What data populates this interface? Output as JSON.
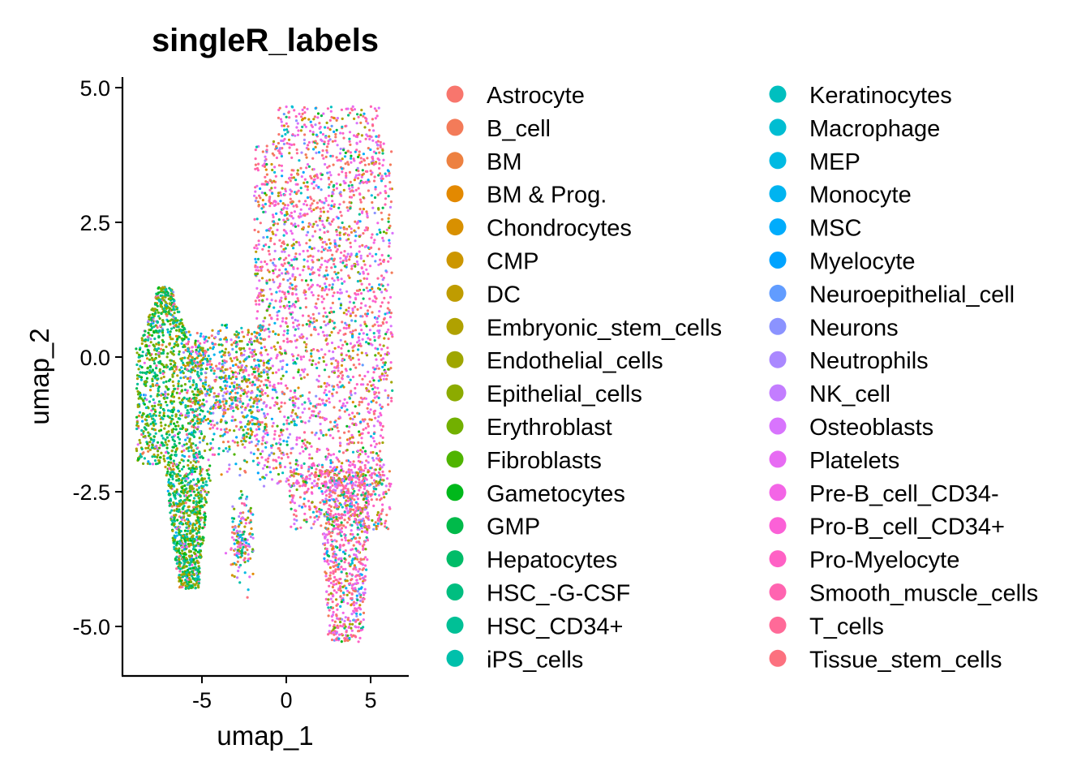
{
  "chart_data": {
    "type": "scatter",
    "title": "singleR_labels",
    "xlabel": "umap_1",
    "ylabel": "umap_2",
    "xlim": [
      -9.5,
      7.5
    ],
    "ylim": [
      -5.9,
      5.2
    ],
    "xticks": [
      -5,
      0,
      5
    ],
    "xtick_labels": [
      "-5",
      "0",
      "5"
    ],
    "yticks": [
      5.0,
      2.5,
      0.0,
      -2.5,
      -5.0
    ],
    "ytick_labels": [
      "5.0",
      "2.5",
      "0.0",
      "-2.5",
      "-5.0"
    ],
    "grid": false,
    "legend_position": "right",
    "legend_columns": 2,
    "series": [
      {
        "name": "Astrocyte",
        "color": "#F8766D"
      },
      {
        "name": "B_cell",
        "color": "#F37B59"
      },
      {
        "name": "BM",
        "color": "#ED8141"
      },
      {
        "name": "BM & Prog.",
        "color": "#E38900"
      },
      {
        "name": "Chondrocytes",
        "color": "#D89000"
      },
      {
        "name": "CMP",
        "color": "#CC9600"
      },
      {
        "name": "DC",
        "color": "#BF9C00"
      },
      {
        "name": "Embryonic_stem_cells",
        "color": "#B0A100"
      },
      {
        "name": "Endothelial_cells",
        "color": "#9FA600"
      },
      {
        "name": "Epithelial_cells",
        "color": "#8CAB00"
      },
      {
        "name": "Erythroblast",
        "color": "#72B000"
      },
      {
        "name": "Fibroblasts",
        "color": "#4FB400"
      },
      {
        "name": "Gametocytes",
        "color": "#00B81B"
      },
      {
        "name": "GMP",
        "color": "#00BA4A"
      },
      {
        "name": "Hepatocytes",
        "color": "#00BC68"
      },
      {
        "name": "HSC_-G-CSF",
        "color": "#00BE80"
      },
      {
        "name": "HSC_CD34+",
        "color": "#00C096"
      },
      {
        "name": "iPS_cells",
        "color": "#00C0AB"
      },
      {
        "name": "Keratinocytes",
        "color": "#00BFBF"
      },
      {
        "name": "Macrophage",
        "color": "#00BDD2"
      },
      {
        "name": "MEP",
        "color": "#00BAE2"
      },
      {
        "name": "Monocyte",
        "color": "#00B4F0"
      },
      {
        "name": "MSC",
        "color": "#00ACFC"
      },
      {
        "name": "Myelocyte",
        "color": "#00A3FF"
      },
      {
        "name": "Neuroepithelial_cell",
        "color": "#619CFF"
      },
      {
        "name": "Neurons",
        "color": "#8B93FF"
      },
      {
        "name": "Neutrophils",
        "color": "#AA88FF"
      },
      {
        "name": "NK_cell",
        "color": "#C37DFF"
      },
      {
        "name": "Osteoblasts",
        "color": "#D874FD"
      },
      {
        "name": "Platelets",
        "color": "#E76BF3"
      },
      {
        "name": "Pre-B_cell_CD34-",
        "color": "#F365E6"
      },
      {
        "name": "Pro-B_cell_CD34+",
        "color": "#FB61D7"
      },
      {
        "name": "Pro-Myelocyte",
        "color": "#FF61C5"
      },
      {
        "name": "Smooth_muscle_cells",
        "color": "#FF64B0"
      },
      {
        "name": "T_cells",
        "color": "#FF6A98"
      },
      {
        "name": "Tissue_stem_cells",
        "color": "#FC717F"
      }
    ]
  }
}
